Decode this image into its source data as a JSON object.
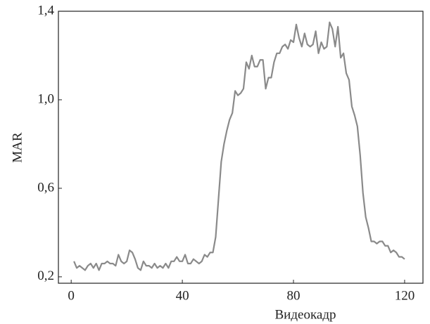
{
  "chart_data": {
    "type": "line",
    "xlabel": "Видеокадр",
    "ylabel": "MAR",
    "x": [
      1,
      2,
      3,
      4,
      5,
      6,
      7,
      8,
      9,
      10,
      11,
      12,
      13,
      14,
      15,
      16,
      17,
      18,
      19,
      20,
      21,
      22,
      23,
      24,
      25,
      26,
      27,
      28,
      29,
      30,
      31,
      32,
      33,
      34,
      35,
      36,
      37,
      38,
      39,
      40,
      41,
      42,
      43,
      44,
      45,
      46,
      47,
      48,
      49,
      50,
      51,
      52,
      53,
      54,
      55,
      56,
      57,
      58,
      59,
      60,
      61,
      62,
      63,
      64,
      65,
      66,
      67,
      68,
      69,
      70,
      71,
      72,
      73,
      74,
      75,
      76,
      77,
      78,
      79,
      80,
      81,
      82,
      83,
      84,
      85,
      86,
      87,
      88,
      89,
      90,
      91,
      92,
      93,
      94,
      95,
      96,
      97,
      98,
      99,
      100,
      101,
      102,
      103,
      104,
      105,
      106,
      107,
      108,
      109,
      110,
      111,
      112,
      113,
      114,
      115,
      116,
      117,
      118,
      119,
      120
    ],
    "series": [
      {
        "name": "MAR",
        "color": "#8a8a8a",
        "values": [
          0.27,
          0.24,
          0.25,
          0.24,
          0.23,
          0.25,
          0.26,
          0.24,
          0.26,
          0.23,
          0.26,
          0.26,
          0.27,
          0.26,
          0.26,
          0.25,
          0.3,
          0.27,
          0.26,
          0.27,
          0.32,
          0.31,
          0.28,
          0.24,
          0.23,
          0.27,
          0.25,
          0.25,
          0.24,
          0.26,
          0.24,
          0.25,
          0.24,
          0.26,
          0.24,
          0.27,
          0.27,
          0.29,
          0.27,
          0.27,
          0.3,
          0.26,
          0.26,
          0.28,
          0.27,
          0.26,
          0.27,
          0.3,
          0.29,
          0.31,
          0.31,
          0.38,
          0.55,
          0.72,
          0.8,
          0.86,
          0.91,
          0.94,
          1.04,
          1.02,
          1.03,
          1.05,
          1.17,
          1.14,
          1.2,
          1.15,
          1.15,
          1.18,
          1.18,
          1.05,
          1.1,
          1.1,
          1.17,
          1.21,
          1.21,
          1.24,
          1.25,
          1.23,
          1.27,
          1.26,
          1.34,
          1.28,
          1.24,
          1.3,
          1.25,
          1.24,
          1.25,
          1.31,
          1.21,
          1.26,
          1.23,
          1.24,
          1.35,
          1.32,
          1.24,
          1.33,
          1.19,
          1.21,
          1.12,
          1.09,
          0.97,
          0.93,
          0.88,
          0.75,
          0.58,
          0.47,
          0.42,
          0.36,
          0.36,
          0.35,
          0.36,
          0.36,
          0.34,
          0.34,
          0.31,
          0.32,
          0.31,
          0.29,
          0.29,
          0.28
        ]
      }
    ],
    "xlim": [
      -4.6,
      126.6
    ],
    "xticks": [
      0,
      40,
      80,
      120
    ],
    "ylim": [
      0.171,
      1.4
    ],
    "yticks": [
      {
        "value": 0.2,
        "label": "0,2"
      },
      {
        "value": 0.6,
        "label": "0,6"
      },
      {
        "value": 1.0,
        "label": "1,0"
      },
      {
        "value": 1.4,
        "label": "1,4"
      }
    ]
  }
}
